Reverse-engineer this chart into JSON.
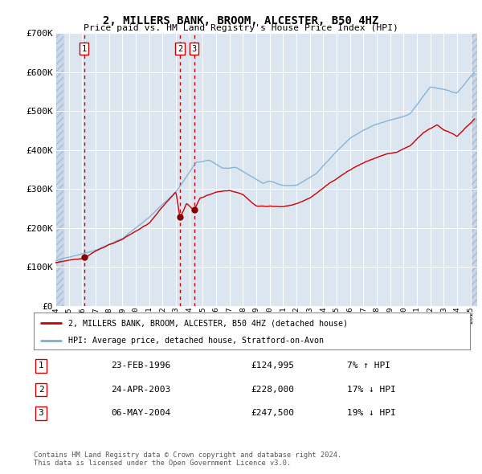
{
  "title": "2, MILLERS BANK, BROOM, ALCESTER, B50 4HZ",
  "subtitle": "Price paid vs. HM Land Registry's House Price Index (HPI)",
  "ylim": [
    0,
    700000
  ],
  "yticks": [
    0,
    100000,
    200000,
    300000,
    400000,
    500000,
    600000,
    700000
  ],
  "ytick_labels": [
    "£0",
    "£100K",
    "£200K",
    "£300K",
    "£400K",
    "£500K",
    "£600K",
    "£700K"
  ],
  "xlim_start": 1994.0,
  "xlim_end": 2025.5,
  "sale_dates": [
    1996.14,
    2003.31,
    2004.35
  ],
  "sale_prices": [
    124995,
    228000,
    247500
  ],
  "sale_labels": [
    "1",
    "2",
    "3"
  ],
  "bg_color": "#dce6f1",
  "hatch_color": "#c0cfe0",
  "grid_color": "#b8cce4",
  "red_line_color": "#cc0000",
  "blue_line_color": "#7bafd4",
  "dashed_red_color": "#cc0000",
  "legend_label_red": "2, MILLERS BANK, BROOM, ALCESTER, B50 4HZ (detached house)",
  "legend_label_blue": "HPI: Average price, detached house, Stratford-on-Avon",
  "table_entries": [
    {
      "num": "1",
      "date": "23-FEB-1996",
      "price": "£124,995",
      "hpi": "7% ↑ HPI"
    },
    {
      "num": "2",
      "date": "24-APR-2003",
      "price": "£228,000",
      "hpi": "17% ↓ HPI"
    },
    {
      "num": "3",
      "date": "06-MAY-2004",
      "price": "£247,500",
      "hpi": "19% ↓ HPI"
    }
  ],
  "footer_line1": "Contains HM Land Registry data © Crown copyright and database right 2024.",
  "footer_line2": "This data is licensed under the Open Government Licence v3.0."
}
